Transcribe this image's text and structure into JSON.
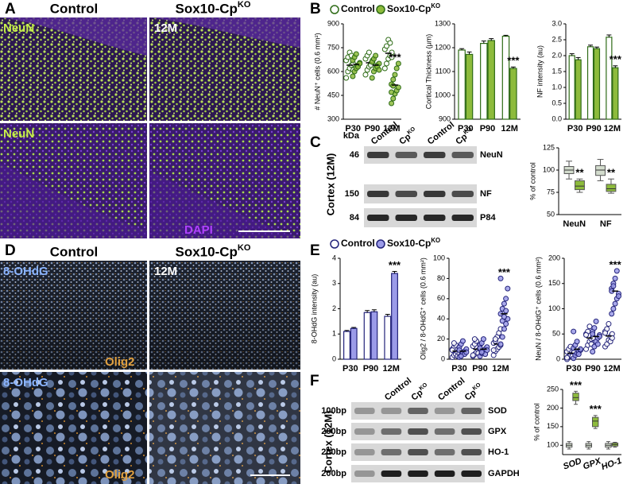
{
  "panel_a": {
    "letter": "A",
    "title_left": "Control",
    "title_right": "Sox10-Cp",
    "title_right_sup": "KO",
    "label_1": "NeuN",
    "label_2": "12M",
    "label_3": "NeuN",
    "label_4": "DAPI"
  },
  "panel_b": {
    "letter": "B",
    "legend": [
      {
        "label": "Control",
        "fill": "#ffffff",
        "stroke": "#2e6b16"
      },
      {
        "label": "Sox10-Cp",
        "sup": "KO",
        "fill": "#8dbb3c",
        "stroke": "#2e6b16"
      }
    ]
  },
  "panel_c": {
    "letter": "C",
    "side_label": "Cortex (12M)",
    "unit": "kDa",
    "lanes": [
      {
        "label": "Control"
      },
      {
        "label": "Cp",
        "sup": "KO"
      },
      {
        "label": "Control"
      },
      {
        "label": "Cp",
        "sup": "KO"
      }
    ],
    "markers": [
      "46",
      "150",
      "84"
    ],
    "bands": [
      "NeuN",
      "NF",
      "P84"
    ]
  },
  "panel_d": {
    "letter": "D",
    "title_left": "Control",
    "title_right": "Sox10-Cp",
    "title_right_sup": "KO",
    "label_1": "8-OHdG",
    "label_2": "12M",
    "label_3": "Olig2",
    "label_4": "8-OHdG",
    "label_5": "Olig2"
  },
  "panel_e": {
    "letter": "E",
    "legend": [
      {
        "label": "Control",
        "fill": "#ffffff",
        "stroke": "#23237a"
      },
      {
        "label": "Sox10-Cp",
        "sup": "KO",
        "fill": "#9b9be8",
        "stroke": "#23237a"
      }
    ]
  },
  "panel_f": {
    "letter": "F",
    "side_label": "Cortex (12M)",
    "lanes": [
      {
        "label": "Control"
      },
      {
        "label": "Cp",
        "sup": "KO"
      },
      {
        "label": "Control"
      },
      {
        "label": "Cp",
        "sup": "KO"
      }
    ],
    "markers": [
      "100bp",
      "200bp",
      "200bp",
      "200bp"
    ],
    "bands": [
      "SOD",
      "GPX",
      "HO-1",
      "GAPDH"
    ]
  },
  "chart_data": [
    {
      "type": "strip",
      "ylabel": "# NeuN⁺ cells (0.6 mm²)",
      "categories": [
        "P30",
        "P90",
        "12M"
      ],
      "ylim": [
        300,
        900
      ],
      "yticks": [
        300,
        450,
        600,
        750,
        900
      ],
      "series": [
        {
          "fill": "#ffffff",
          "stroke": "#2e6b16",
          "values": [
            [
              560,
              600,
              620,
              640,
              650,
              670,
              690,
              720,
              700,
              610
            ],
            [
              580,
              610,
              630,
              650,
              660,
              680,
              700,
              720,
              640,
              670
            ],
            [
              620,
              650,
              680,
              700,
              720,
              740,
              760,
              800,
              780,
              690
            ]
          ],
          "means": [
            640,
            655,
            715
          ]
        },
        {
          "fill": "#8dbb3c",
          "stroke": "#2e6b16",
          "values": [
            [
              570,
              600,
              620,
              640,
              655,
              670,
              690,
              710,
              630,
              650
            ],
            [
              560,
              600,
              620,
              640,
              650,
              660,
              680,
              700,
              630,
              610
            ],
            [
              400,
              430,
              460,
              480,
              500,
              520,
              550,
              580,
              620,
              650,
              470,
              510
            ]
          ],
          "means": [
            645,
            640,
            515
          ],
          "significance": [
            null,
            null,
            "***"
          ]
        }
      ]
    },
    {
      "type": "bar",
      "ylabel": "Cortical Thickness (μm)",
      "categories": [
        "P30",
        "P90",
        "12M"
      ],
      "ylim": [
        900,
        1300
      ],
      "yticks": [
        900,
        1000,
        1100,
        1200,
        1300
      ],
      "series": [
        {
          "fill": "#ffffff",
          "stroke": "#2e6b16",
          "values": [
            1190,
            1218,
            1248
          ],
          "errors": [
            6,
            10,
            4
          ]
        },
        {
          "fill": "#8dbb3c",
          "stroke": "#2e6b16",
          "values": [
            1172,
            1230,
            1113
          ],
          "errors": [
            10,
            8,
            6
          ],
          "significance": [
            null,
            null,
            "***"
          ]
        }
      ]
    },
    {
      "type": "bar",
      "ylabel": "NF intensity (au)",
      "categories": [
        "P30",
        "P90",
        "12M"
      ],
      "ylim": [
        0,
        3
      ],
      "yticks": [
        {
          "value": 0,
          "label": "0.0"
        },
        0.5,
        {
          "value": 1,
          "label": "1.0"
        },
        1.5,
        {
          "value": 2,
          "label": "2.0"
        },
        2.5,
        {
          "value": 3,
          "label": "3.0"
        }
      ],
      "series": [
        {
          "fill": "#ffffff",
          "stroke": "#2e6b16",
          "values": [
            2.0,
            2.28,
            2.58
          ],
          "errors": [
            0.06,
            0.05,
            0.07
          ]
        },
        {
          "fill": "#8dbb3c",
          "stroke": "#2e6b16",
          "values": [
            1.87,
            2.22,
            1.62
          ],
          "errors": [
            0.07,
            0.05,
            0.06
          ],
          "significance": [
            null,
            null,
            "***"
          ]
        }
      ]
    },
    {
      "type": "box",
      "ylabel": "% of control",
      "categories": [
        "NeuN",
        "NF"
      ],
      "ylim": [
        50,
        125
      ],
      "yticks": [
        50,
        75,
        100,
        125
      ],
      "series": [
        {
          "fill": "#d3dccd",
          "boxes": [
            {
              "min": 90,
              "q1": 96,
              "median": 100,
              "q3": 104,
              "max": 110
            },
            {
              "min": 88,
              "q1": 94,
              "median": 100,
              "q3": 105,
              "max": 112
            }
          ]
        },
        {
          "fill": "#8dbb3c",
          "boxes": [
            {
              "min": 75,
              "q1": 78,
              "median": 82,
              "q3": 88,
              "max": 90
            },
            {
              "min": 74,
              "q1": 76,
              "median": 79,
              "q3": 84,
              "max": 90
            }
          ],
          "significance": [
            "**",
            "**"
          ]
        }
      ]
    },
    {
      "type": "bar",
      "ylabel": "8-OHdG intensity (au)",
      "categories": [
        "P30",
        "P90",
        "12M"
      ],
      "ylim": [
        0,
        4
      ],
      "yticks": [
        0,
        1,
        2,
        3,
        4
      ],
      "series": [
        {
          "fill": "#ffffff",
          "stroke": "#23237a",
          "values": [
            1.1,
            1.85,
            1.7
          ],
          "errors": [
            0.04,
            0.08,
            0.08
          ]
        },
        {
          "fill": "#9b9be8",
          "stroke": "#23237a",
          "values": [
            1.22,
            1.88,
            3.4
          ],
          "errors": [
            0.04,
            0.08,
            0.08
          ],
          "significance": [
            null,
            null,
            "***"
          ]
        }
      ]
    },
    {
      "type": "strip",
      "ylabel": "Olig2 / 8-OHdG⁺ cells (0.6 mm²)",
      "categories": [
        "P30",
        "P90",
        "12M"
      ],
      "ylim": [
        0,
        100
      ],
      "yticks": [
        0,
        20,
        40,
        60,
        80,
        100
      ],
      "series": [
        {
          "fill": "#ffffff",
          "stroke": "#23237a",
          "values": [
            [
              2,
              4,
              5,
              7,
              8,
              10,
              12,
              14,
              3,
              6,
              9,
              16
            ],
            [
              3,
              5,
              7,
              9,
              11,
              13,
              15,
              18,
              6,
              10,
              4,
              20
            ],
            [
              4,
              8,
              10,
              12,
              14,
              16,
              18,
              22,
              26,
              30,
              9,
              20
            ]
          ],
          "means": [
            8,
            10,
            15
          ]
        },
        {
          "fill": "#9b9be8",
          "stroke": "#23237a",
          "values": [
            [
              2,
              4,
              6,
              8,
              10,
              12,
              15,
              18,
              5,
              7,
              9,
              3
            ],
            [
              3,
              6,
              8,
              10,
              12,
              14,
              16,
              20,
              5,
              9,
              11,
              7
            ],
            [
              15,
              22,
              30,
              35,
              40,
              45,
              50,
              55,
              60,
              70,
              80,
              38,
              42,
              48
            ]
          ],
          "means": [
            8,
            10,
            45
          ],
          "significance": [
            null,
            null,
            "***"
          ]
        }
      ]
    },
    {
      "type": "strip",
      "ylabel": "NeuN / 8-OHdG⁺ cells (0.6 mm²)",
      "categories": [
        "P30",
        "P90",
        "12M"
      ],
      "ylim": [
        0,
        200
      ],
      "yticks": [
        0,
        50,
        100,
        150,
        200
      ],
      "series": [
        {
          "fill": "#ffffff",
          "stroke": "#23237a",
          "values": [
            [
              0,
              5,
              8,
              10,
              12,
              15,
              20,
              25,
              6,
              14,
              3
            ],
            [
              20,
              28,
              35,
              40,
              45,
              50,
              55,
              65,
              30,
              42,
              48
            ],
            [
              25,
              30,
              38,
              45,
              50,
              55,
              60,
              70,
              35,
              42,
              52
            ]
          ],
          "means": [
            12,
            42,
            46
          ]
        },
        {
          "fill": "#9b9be8",
          "stroke": "#23237a",
          "values": [
            [
              2,
              8,
              12,
              15,
              18,
              22,
              28,
              35,
              10,
              20,
              55
            ],
            [
              15,
              25,
              35,
              42,
              48,
              55,
              62,
              75,
              30,
              45,
              50
            ],
            [
              90,
              100,
              110,
              120,
              130,
              140,
              150,
              160,
              175,
              125,
              135,
              145
            ]
          ],
          "means": [
            20,
            45,
            135
          ],
          "significance": [
            null,
            null,
            "***"
          ]
        }
      ]
    },
    {
      "type": "box",
      "ylabel": "% of control",
      "categories": [
        "SOD",
        "GPX",
        "HO-1"
      ],
      "ylim": [
        75,
        250
      ],
      "yticks": [
        100,
        150,
        200,
        250
      ],
      "series": [
        {
          "fill": "#d3dccd",
          "boxes": [
            {
              "min": 90,
              "q1": 95,
              "median": 100,
              "q3": 105,
              "max": 110
            },
            {
              "min": 90,
              "q1": 95,
              "median": 100,
              "q3": 105,
              "max": 110
            },
            {
              "min": 90,
              "q1": 95,
              "median": 100,
              "q3": 105,
              "max": 110
            }
          ]
        },
        {
          "fill": "#8dbb3c",
          "boxes": [
            {
              "min": 210,
              "q1": 220,
              "median": 228,
              "q3": 240,
              "max": 245
            },
            {
              "min": 145,
              "q1": 150,
              "median": 165,
              "q3": 175,
              "max": 180
            },
            {
              "min": 95,
              "q1": 98,
              "median": 102,
              "q3": 106,
              "max": 108
            }
          ],
          "significance": [
            "***",
            "***",
            null
          ]
        }
      ]
    }
  ]
}
